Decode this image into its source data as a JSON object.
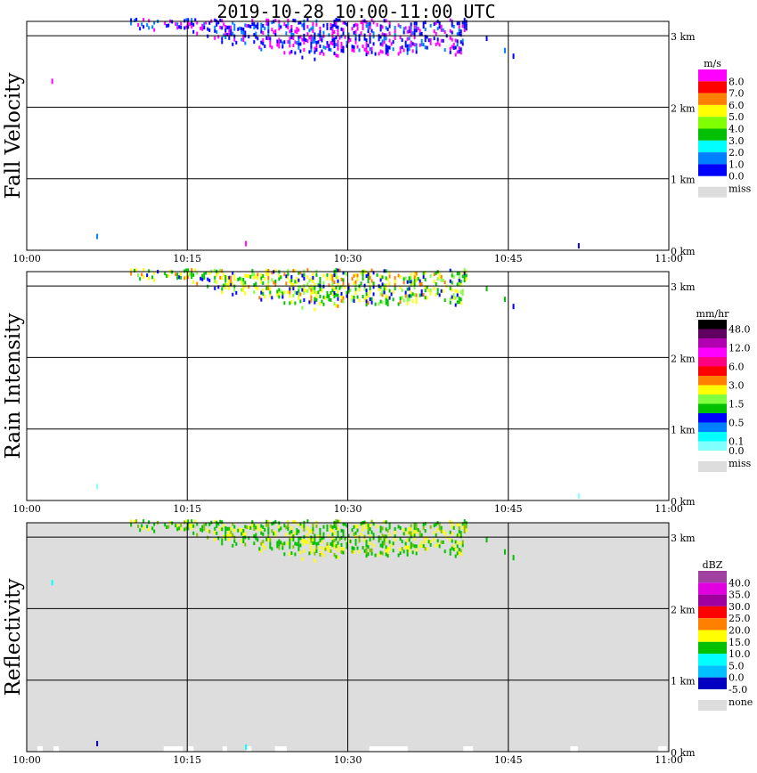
{
  "title": "2019-10-28   10:00-11:00 UTC",
  "chart_data": [
    {
      "type": "heatmap",
      "ylabel": "Fall Velocity",
      "x_ticks": [
        "10:00",
        "10:15",
        "10:30",
        "10:45",
        "11:00"
      ],
      "y_ticks": [
        "0 km",
        "1 km",
        "2 km",
        "3 km"
      ],
      "xlim_minutes": [
        0,
        60
      ],
      "ylim_km": [
        0,
        3.2
      ],
      "background": "#ffffff",
      "legend": {
        "unit": "m/s",
        "labels": [
          "8.0",
          "7.0",
          "6.0",
          "5.0",
          "4.0",
          "3.0",
          "2.0",
          "1.0",
          "0.0"
        ],
        "colors": [
          "#ff00ff",
          "#ff0000",
          "#ff8000",
          "#ffff00",
          "#80ff00",
          "#00c000",
          "#00ffff",
          "#0080ff",
          "#0000ff"
        ],
        "missing_label": "miss",
        "missing_color": "#dddddd"
      },
      "echo_palette": [
        "#ff00ff",
        "#ff00ff",
        "#0000ff",
        "#0000ff",
        "#0080ff"
      ],
      "specks": [
        [
          2.3,
          2.35,
          "#ff00ff"
        ],
        [
          6.5,
          0.18,
          "#0080ff"
        ],
        [
          20.4,
          0.08,
          "#ff00ff"
        ],
        [
          44.6,
          2.78,
          "#0080ff"
        ],
        [
          45.4,
          2.7,
          "#0000ff"
        ],
        [
          51.5,
          0.05,
          "#0000ff"
        ],
        [
          42.9,
          2.95,
          "#0000ff"
        ]
      ],
      "clutter": []
    },
    {
      "type": "heatmap",
      "ylabel": "Rain Intensity",
      "x_ticks": [
        "10:00",
        "10:15",
        "10:30",
        "10:45",
        "11:00"
      ],
      "y_ticks": [
        "0 km",
        "1 km",
        "2 km",
        "3 km"
      ],
      "xlim_minutes": [
        0,
        60
      ],
      "ylim_km": [
        0,
        3.2
      ],
      "background": "#ffffff",
      "legend": {
        "unit": "mm/hr",
        "labels": [
          "48.0",
          "",
          "12.0",
          "",
          "6.0",
          "",
          "3.0",
          "",
          "1.5",
          "",
          "0.5",
          "",
          "0.1",
          "0.0"
        ],
        "colors": [
          "#000000",
          "#600060",
          "#b000b0",
          "#ff00ff",
          "#ff0080",
          "#ff0000",
          "#ff8000",
          "#ffff00",
          "#80ff40",
          "#00c000",
          "#0000ff",
          "#0080ff",
          "#00ffff",
          "#80ffff"
        ],
        "missing_label": "miss",
        "missing_color": "#dddddd"
      },
      "echo_palette": [
        "#00c000",
        "#00c000",
        "#80ff40",
        "#ffff00",
        "#ffff00",
        "#ff8000",
        "#0000ff"
      ],
      "specks": [
        [
          6.5,
          0.18,
          "#80ffff"
        ],
        [
          51.5,
          0.05,
          "#80ffff"
        ],
        [
          44.6,
          2.8,
          "#00c000"
        ],
        [
          45.4,
          2.7,
          "#0000ff"
        ],
        [
          42.9,
          2.95,
          "#00c000"
        ]
      ],
      "clutter": []
    },
    {
      "type": "heatmap",
      "ylabel": "Reflectivity",
      "x_ticks": [
        "10:00",
        "10:15",
        "10:30",
        "10:45",
        "11:00"
      ],
      "y_ticks": [
        "0 km",
        "1 km",
        "2 km",
        "3 km"
      ],
      "xlim_minutes": [
        0,
        60
      ],
      "ylim_km": [
        0,
        3.2
      ],
      "background": "#dddddd",
      "legend": {
        "unit": "dBZ",
        "labels": [
          "40.0",
          "35.0",
          "30.0",
          "25.0",
          "20.0",
          "15.0",
          "10.0",
          "5.0",
          "0.0",
          "-5.0"
        ],
        "colors": [
          "#a040a0",
          "#e000e0",
          "#a000a0",
          "#ff0000",
          "#ff8000",
          "#ffff00",
          "#00c000",
          "#00ffff",
          "#00c0ff",
          "#0000c0"
        ],
        "missing_label": "none",
        "missing_color": "#dddddd"
      },
      "echo_palette": [
        "#00c000",
        "#00c000",
        "#00c000",
        "#ffff00",
        "#ffff00",
        "#80c000"
      ],
      "specks": [
        [
          2.3,
          2.35,
          "#00ffff"
        ],
        [
          6.5,
          0.1,
          "#0000c0"
        ],
        [
          20.4,
          0.05,
          "#00ffff"
        ],
        [
          44.6,
          2.78,
          "#00c000"
        ],
        [
          45.4,
          2.7,
          "#00c000"
        ],
        [
          42.9,
          2.95,
          "#00c000"
        ]
      ],
      "clutter": [
        [
          12.8,
          14.6
        ],
        [
          15.1,
          15.6
        ],
        [
          18.3,
          18.7
        ],
        [
          20.5,
          21.0
        ],
        [
          23.2,
          24.3
        ],
        [
          32.0,
          35.6
        ],
        [
          40.8,
          41.7
        ],
        [
          50.8,
          51.5
        ],
        [
          59.0,
          59.8
        ],
        [
          2.5,
          3.0
        ],
        [
          1.0,
          1.5
        ]
      ]
    }
  ],
  "echo_envelope_km": [
    [
      9.5,
      3.12
    ],
    [
      10.5,
      3.08
    ],
    [
      14,
      3.12
    ],
    [
      17,
      3.0
    ],
    [
      19,
      2.9
    ],
    [
      21,
      2.85
    ],
    [
      23,
      2.8
    ],
    [
      25,
      2.72
    ],
    [
      27,
      2.68
    ],
    [
      29,
      2.7
    ],
    [
      30,
      2.85
    ],
    [
      31,
      2.78
    ],
    [
      33,
      2.72
    ],
    [
      35,
      2.7
    ],
    [
      36.5,
      2.78
    ],
    [
      38,
      2.9
    ],
    [
      39.5,
      2.75
    ],
    [
      40.5,
      2.75
    ],
    [
      41,
      3.05
    ]
  ]
}
